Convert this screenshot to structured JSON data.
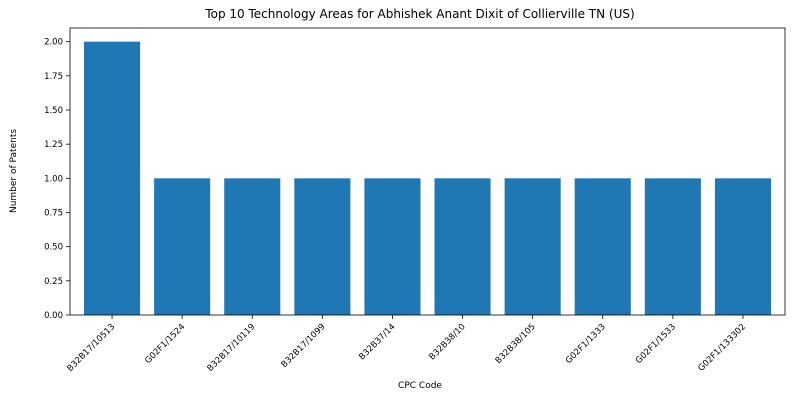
{
  "chart_data": {
    "type": "bar",
    "title": "Top 10 Technology Areas for Abhishek Anant Dixit of Collierville TN (US)",
    "xlabel": "CPC Code",
    "ylabel": "Number of Patents",
    "categories": [
      "B32B17/10513",
      "G02F1/1524",
      "B32B17/10119",
      "B32B17/1099",
      "B32B37/14",
      "B32B38/10",
      "B32B38/105",
      "G02F1/1333",
      "G02F1/1533",
      "G02F1/133302"
    ],
    "values": [
      2,
      1,
      1,
      1,
      1,
      1,
      1,
      1,
      1,
      1
    ],
    "ylim": [
      0,
      2.1
    ],
    "yticks": [
      "0.00",
      "0.25",
      "0.50",
      "0.75",
      "1.00",
      "1.25",
      "1.50",
      "1.75",
      "2.00"
    ],
    "bar_color": "#1f77b4",
    "grid": false
  }
}
